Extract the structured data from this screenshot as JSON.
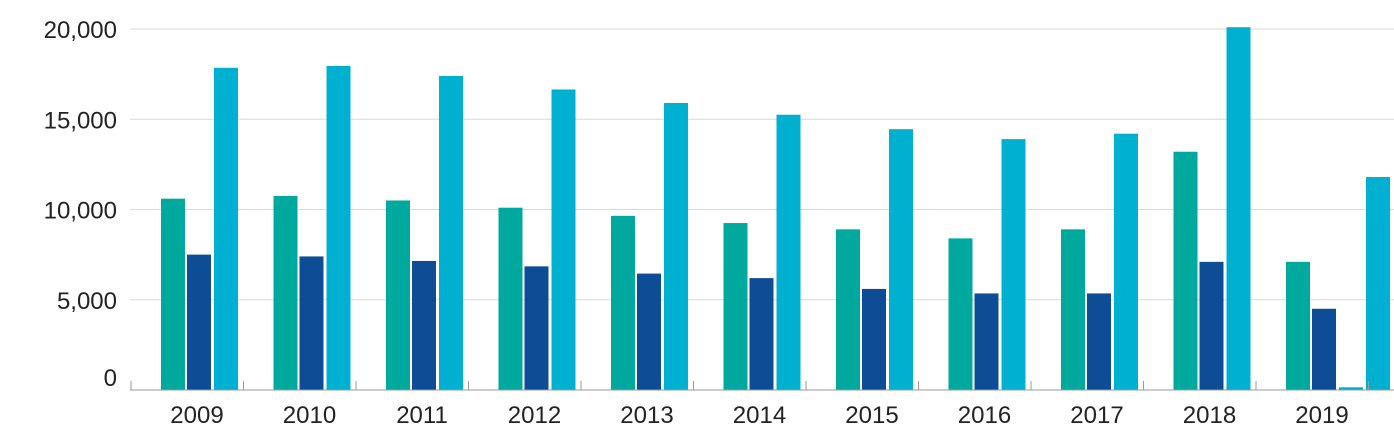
{
  "chart_data": {
    "type": "bar",
    "categories": [
      "2009",
      "2010",
      "2011",
      "2012",
      "2013",
      "2014",
      "2015",
      "2016",
      "2017",
      "2018",
      "2019"
    ],
    "series": [
      {
        "color": "#00a99d",
        "values": [
          10600,
          10750,
          10500,
          10100,
          9650,
          9250,
          8900,
          8400,
          8900,
          13200,
          7100
        ]
      },
      {
        "color": "#0f4c96",
        "values": [
          7500,
          7400,
          7150,
          6850,
          6450,
          6200,
          5600,
          5350,
          5350,
          7100,
          4500
        ]
      },
      {
        "color": "#00b0d0",
        "values": [
          17850,
          17950,
          17400,
          16650,
          15900,
          15250,
          14450,
          13900,
          14200,
          20100,
          150
        ]
      }
    ],
    "extra_bar": {
      "category_index": 10,
      "color": "#00b0d0",
      "value": 11800
    },
    "y_ticks": [
      {
        "value": 0,
        "label": "0"
      },
      {
        "value": 5000,
        "label": "5,000"
      },
      {
        "value": 10000,
        "label": "10,000"
      },
      {
        "value": 15000,
        "label": "15,000"
      },
      {
        "value": 20000,
        "label": "20,000"
      }
    ],
    "ylim": [
      0,
      20000
    ],
    "grid": true,
    "legend": "none"
  }
}
